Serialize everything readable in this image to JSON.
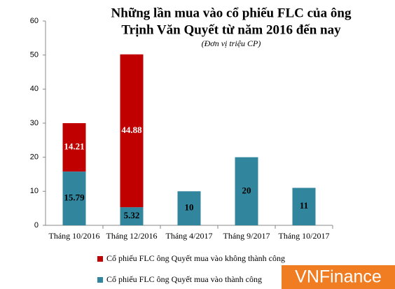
{
  "chart_data": {
    "type": "bar",
    "stacked": true,
    "title": [
      "Những lần mua vào cổ phiếu FLC của ông",
      "Trịnh  Văn Quyết từ năm 2016 đến nay"
    ],
    "subtitle": "(Đơn vị triệu CP)",
    "categories": [
      "Tháng 10/2016",
      "Tháng 12/2016",
      "Tháng 4/2017",
      "Tháng 9/2017",
      "Tháng 10/2017"
    ],
    "series": [
      {
        "name": "Cổ phiếu FLC  ông Quyết mua vào thành công",
        "color": "#31859c",
        "values": [
          15.79,
          5.32,
          10,
          20,
          11
        ]
      },
      {
        "name": "Cổ phiếu FLC  ông Quyết mua vào không thành công",
        "color": "#c00000",
        "values": [
          14.21,
          44.88,
          null,
          null,
          null
        ]
      }
    ],
    "ylim": [
      0,
      60
    ],
    "yticks": [
      0,
      10,
      20,
      30,
      40,
      50,
      60
    ],
    "watermark": "VNFinance"
  }
}
